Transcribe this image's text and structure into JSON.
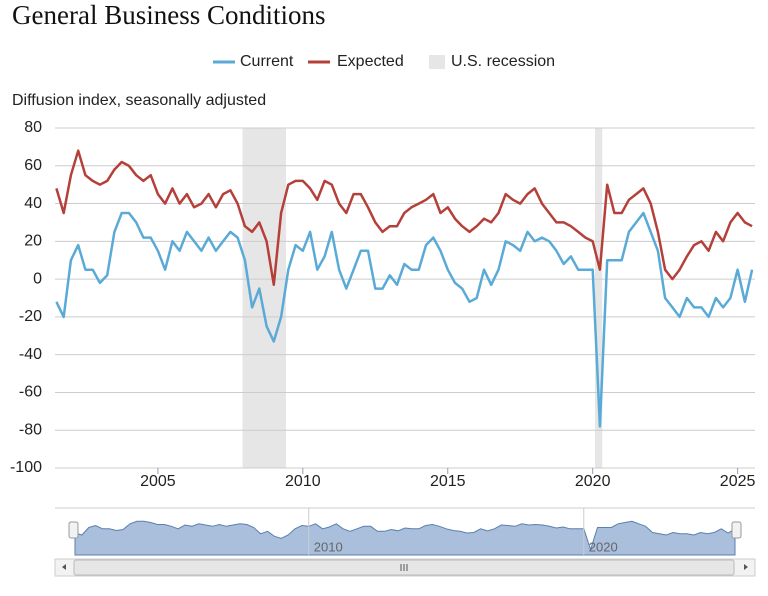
{
  "chart_data": {
    "type": "line",
    "title": "General Business Conditions",
    "y_label": "Diffusion index, seasonally adjusted",
    "x": [
      2001.5,
      2001.75,
      2002,
      2002.25,
      2002.5,
      2002.75,
      2003,
      2003.25,
      2003.5,
      2003.75,
      2004,
      2004.25,
      2004.5,
      2004.75,
      2005,
      2005.25,
      2005.5,
      2005.75,
      2006,
      2006.25,
      2006.5,
      2006.75,
      2007,
      2007.25,
      2007.5,
      2007.75,
      2008,
      2008.25,
      2008.5,
      2008.75,
      2009,
      2009.25,
      2009.5,
      2009.75,
      2010,
      2010.25,
      2010.5,
      2010.75,
      2011,
      2011.25,
      2011.5,
      2011.75,
      2012,
      2012.25,
      2012.5,
      2012.75,
      2013,
      2013.25,
      2013.5,
      2013.75,
      2014,
      2014.25,
      2014.5,
      2014.75,
      2015,
      2015.25,
      2015.5,
      2015.75,
      2016,
      2016.25,
      2016.5,
      2016.75,
      2017,
      2017.25,
      2017.5,
      2017.75,
      2018,
      2018.25,
      2018.5,
      2018.75,
      2019,
      2019.25,
      2019.5,
      2019.75,
      2020,
      2020.25,
      2020.5,
      2020.75,
      2021,
      2021.25,
      2021.5,
      2021.75,
      2022,
      2022.25,
      2022.5,
      2022.75,
      2023,
      2023.25,
      2023.5,
      2023.75,
      2024,
      2024.25,
      2024.5,
      2024.75,
      2025,
      2025.25,
      2025.5
    ],
    "series": [
      {
        "name": "Current",
        "color": "#5aaad8",
        "values": [
          -12,
          -20,
          10,
          18,
          5,
          5,
          -2,
          2,
          25,
          35,
          35,
          30,
          22,
          22,
          15,
          5,
          20,
          15,
          25,
          20,
          15,
          22,
          15,
          20,
          25,
          22,
          10,
          -15,
          -5,
          -25,
          -33,
          -20,
          5,
          18,
          15,
          25,
          5,
          12,
          25,
          5,
          -5,
          5,
          15,
          15,
          -5,
          -5,
          2,
          -3,
          8,
          5,
          5,
          18,
          22,
          15,
          5,
          -2,
          -5,
          -12,
          -10,
          5,
          -3,
          5,
          20,
          18,
          15,
          25,
          20,
          22,
          20,
          15,
          8,
          12,
          5,
          5,
          5,
          -78,
          10,
          10,
          10,
          25,
          30,
          35,
          25,
          15,
          -10,
          -15,
          -20,
          -10,
          -15,
          -15,
          -20,
          -10,
          -15,
          -10,
          5,
          -12,
          5
        ]
      },
      {
        "name": "Expected",
        "color": "#b5403a",
        "values": [
          48,
          35,
          55,
          68,
          55,
          52,
          50,
          52,
          58,
          62,
          60,
          55,
          52,
          55,
          45,
          40,
          48,
          40,
          45,
          38,
          40,
          45,
          38,
          45,
          47,
          40,
          28,
          25,
          30,
          20,
          -3,
          35,
          50,
          52,
          52,
          48,
          42,
          52,
          50,
          40,
          35,
          45,
          45,
          38,
          30,
          25,
          28,
          28,
          35,
          38,
          40,
          42,
          45,
          35,
          38,
          32,
          28,
          25,
          28,
          32,
          30,
          35,
          45,
          42,
          40,
          45,
          48,
          40,
          35,
          30,
          30,
          28,
          25,
          22,
          20,
          5,
          50,
          35,
          35,
          42,
          45,
          48,
          40,
          25,
          5,
          0,
          5,
          12,
          18,
          20,
          15,
          25,
          20,
          30,
          35,
          30,
          28
        ]
      }
    ],
    "recessions": {
      "name": "U.S. recession",
      "color": "#e6e6e6",
      "periods": [
        [
          2007.92,
          2009.42
        ],
        [
          2020.08,
          2020.33
        ]
      ]
    },
    "xlim": [
      2001.45,
      2025.6
    ],
    "xticks": [
      2005,
      2010,
      2015,
      2020,
      2025
    ],
    "ylim": [
      -100,
      80
    ],
    "yticks": [
      -100,
      -80,
      -60,
      -40,
      -20,
      0,
      20,
      40,
      60,
      80
    ],
    "grid": true,
    "legend": "top",
    "navigator": {
      "xticks": [
        2010,
        2020
      ]
    }
  }
}
